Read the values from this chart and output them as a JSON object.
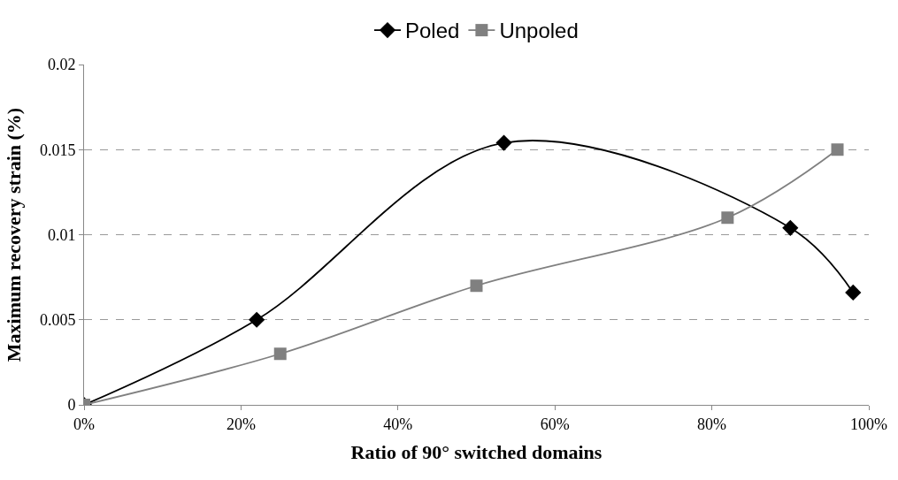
{
  "chart_data": {
    "type": "line",
    "xlabel": "Ratio of 90° switched domains",
    "ylabel": "Maximum recovery strain (%)",
    "series": [
      {
        "name": "Poled",
        "color": "#000000",
        "marker": "diamond",
        "x": [
          0,
          0.22,
          0.535,
          0.9,
          0.98
        ],
        "values": [
          0,
          0.005,
          0.0154,
          0.0104,
          0.0066
        ]
      },
      {
        "name": "Unpoled",
        "color": "#808080",
        "marker": "square",
        "x": [
          0,
          0.25,
          0.5,
          0.82,
          0.96
        ],
        "values": [
          0,
          0.003,
          0.007,
          0.011,
          0.015
        ]
      }
    ],
    "xlim": [
      0,
      1
    ],
    "xticks": [
      {
        "value": 0,
        "label": "0%"
      },
      {
        "value": 0.2,
        "label": "20%"
      },
      {
        "value": 0.4,
        "label": "40%"
      },
      {
        "value": 0.6,
        "label": "60%"
      },
      {
        "value": 0.8,
        "label": "80%"
      },
      {
        "value": 1,
        "label": "100%"
      }
    ],
    "ylim": [
      0,
      0.02
    ],
    "yticks": [
      0,
      0.005,
      0.01,
      0.015,
      0.02
    ],
    "grid": "y",
    "legend": "top",
    "line_style": "solid"
  }
}
